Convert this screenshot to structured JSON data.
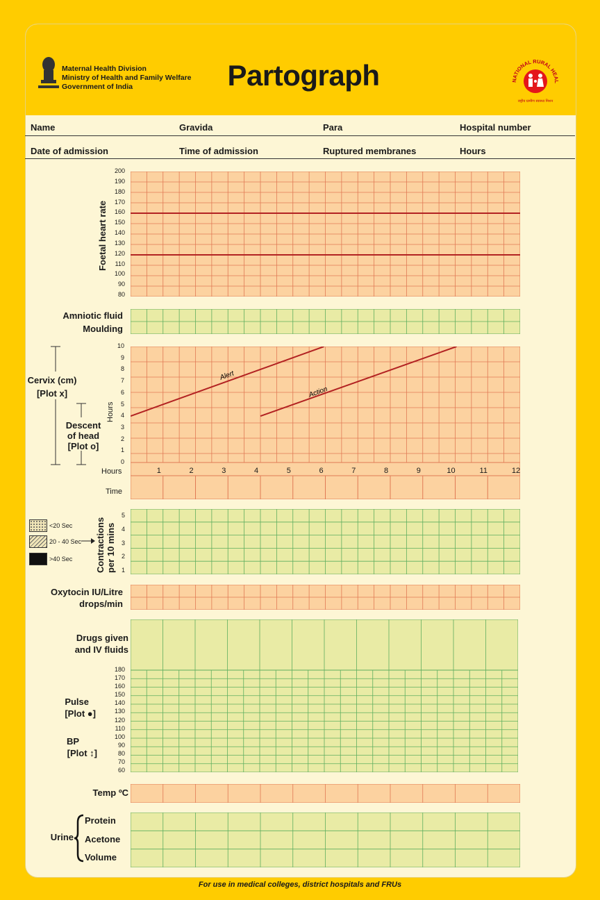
{
  "header": {
    "title": "Partograph",
    "ministry_lines": [
      "Maternal Health Division",
      "Ministry of Health and Family Welfare",
      "Government of India"
    ],
    "nrhm_text": "NATIONAL RURAL HEALTH MISSION",
    "nrhm_hindi": "राष्ट्रीय ग्रामीण स्वास्थ्य मिशन"
  },
  "patient_fields": {
    "name": "Name",
    "gravida": "Gravida",
    "para": "Para",
    "hospital_number": "Hospital number",
    "date_of_admission": "Date of admission",
    "time_of_admission": "Time of admission",
    "ruptured_membranes": "Ruptured membranes",
    "hours": "Hours"
  },
  "fhr": {
    "label": "Foetal heart rate",
    "ticks": [
      "200",
      "190",
      "180",
      "170",
      "160",
      "150",
      "140",
      "130",
      "120",
      "110",
      "100",
      "90",
      "80"
    ]
  },
  "amniotic": {
    "label1": "Amniotic fluid",
    "label2": "Moulding"
  },
  "cervix": {
    "label": [
      "Cervix (cm)",
      "[Plot x]"
    ],
    "descent": [
      "Descent",
      "of head",
      "[Plot o]"
    ],
    "hours_axis": "Hours",
    "ticks": [
      "10",
      "9",
      "8",
      "7",
      "6",
      "5",
      "4",
      "3",
      "2",
      "1",
      "0"
    ],
    "alert": "Alert",
    "action": "Action",
    "hours_row_label": "Hours",
    "hours": [
      "1",
      "2",
      "3",
      "4",
      "5",
      "6",
      "7",
      "8",
      "9",
      "10",
      "11",
      "12"
    ],
    "time_label": "Time"
  },
  "contractions": {
    "label": [
      "Contractions",
      "per 10 mins"
    ],
    "ticks": [
      "5",
      "4",
      "3",
      "2",
      "1"
    ],
    "legend": [
      "<20 Sec",
      "20 - 40 Sec",
      ">40 Sec"
    ]
  },
  "oxytocin": {
    "label1": "Oxytocin IU/Litre",
    "label2": "drops/min"
  },
  "drugs": {
    "label1": "Drugs given",
    "label2": "and IV fluids"
  },
  "pulse": {
    "label1": "Pulse",
    "label2": "[Plot ●]",
    "bp1": "BP",
    "bp2": "[Plot ↕]",
    "ticks": [
      "180",
      "170",
      "160",
      "150",
      "140",
      "130",
      "120",
      "110",
      "100",
      "90",
      "80",
      "70",
      "60"
    ]
  },
  "temp": {
    "label": "Temp ºC"
  },
  "urine": {
    "label": "Urine",
    "rows": [
      "Protein",
      "Acetone",
      "Volume"
    ]
  },
  "footer": "For use in medical colleges, district hospitals and FRUs",
  "colors": {
    "orange": "#FCD2A0",
    "green": "#E9EBA5",
    "grid_orange": "#E07A55",
    "grid_green": "#5FAE5F",
    "line": "#B22222"
  }
}
